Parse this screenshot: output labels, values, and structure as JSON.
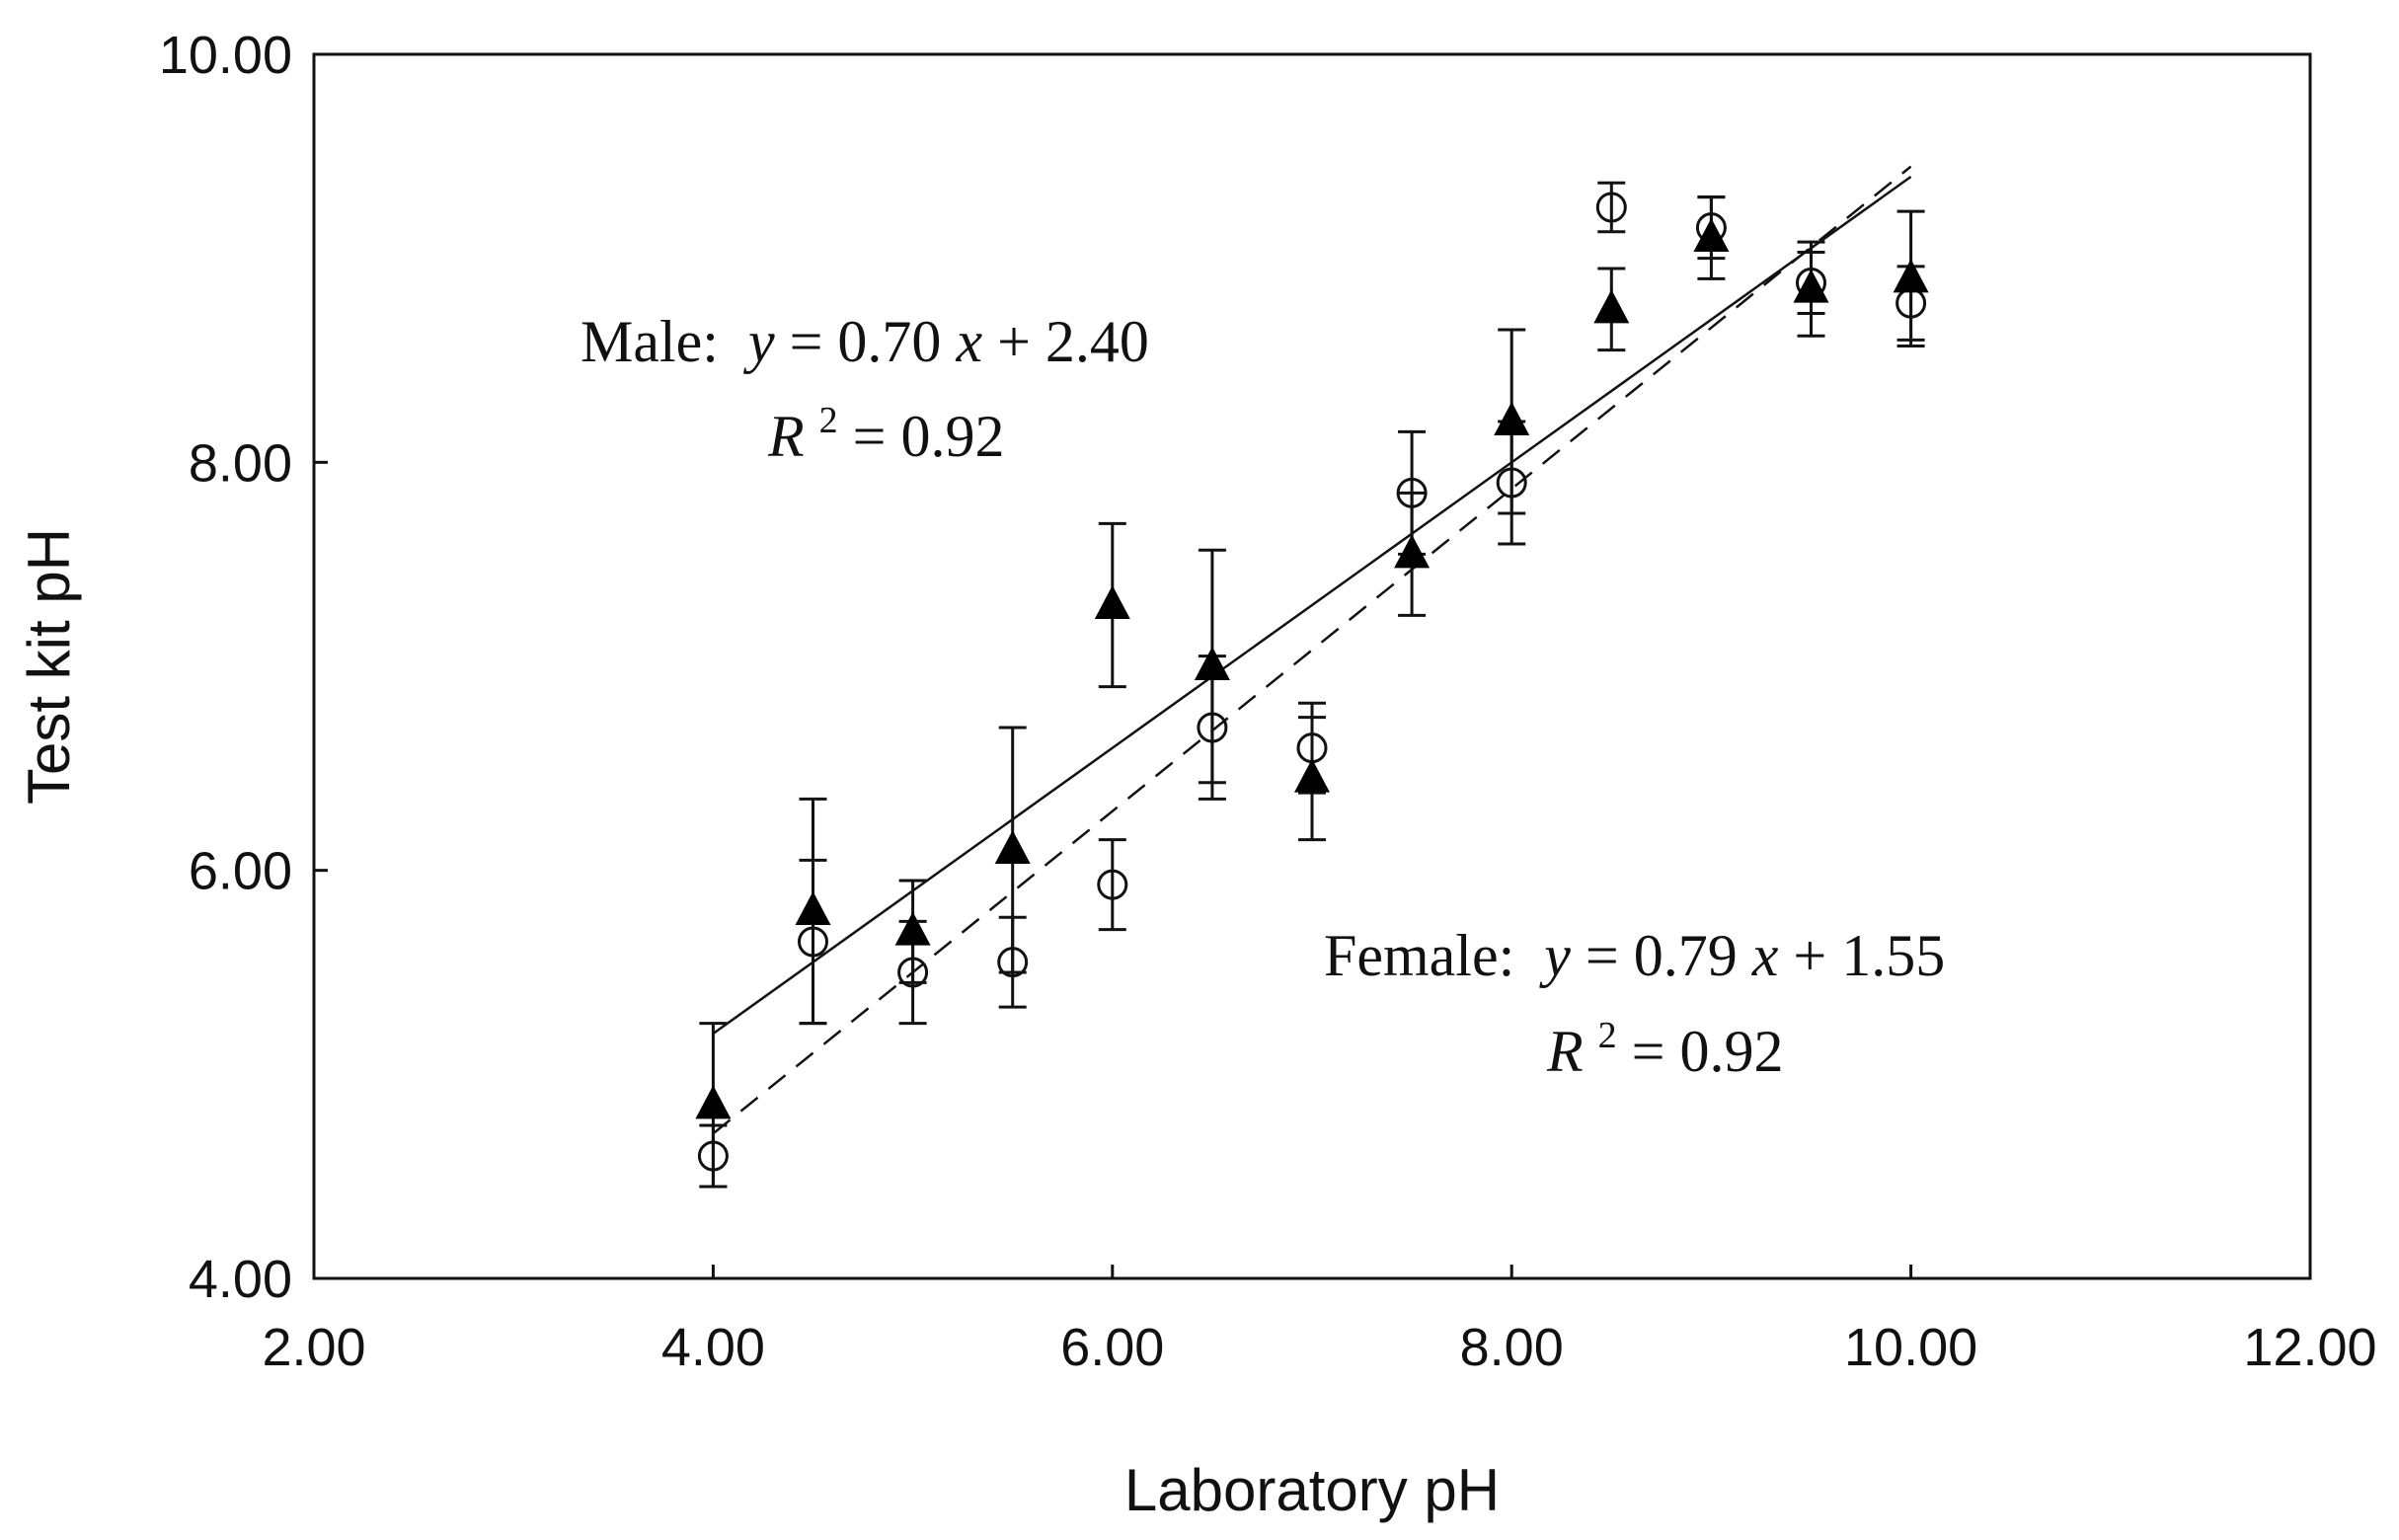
{
  "chart_data": {
    "type": "scatter",
    "title": "",
    "xlabel": "Laboratory pH",
    "ylabel": "Test kit pH",
    "xlim": [
      2.0,
      12.0
    ],
    "ylim": [
      4.0,
      10.0
    ],
    "xticks": [
      "2.00",
      "4.00",
      "6.00",
      "8.00",
      "10.00",
      "12.00"
    ],
    "yticks": [
      "4.00",
      "6.00",
      "8.00",
      "10.00"
    ],
    "grid": false,
    "series": [
      {
        "name": "Male",
        "marker": "filled-triangle",
        "line": "solid",
        "x": [
          4.0,
          4.5,
          5.0,
          5.5,
          6.0,
          6.5,
          7.0,
          7.5,
          8.0,
          8.5,
          9.0,
          9.5,
          10.0
        ],
        "y": [
          4.85,
          5.8,
          5.7,
          6.1,
          7.3,
          7.0,
          6.45,
          7.55,
          8.2,
          8.75,
          9.1,
          8.85,
          8.9
        ],
        "err": [
          0.4,
          0.55,
          0.25,
          0.6,
          0.4,
          0.57,
          0.3,
          0.3,
          0.45,
          0.2,
          0.2,
          0.23,
          0.33
        ],
        "fit": {
          "slope": 0.7,
          "intercept": 2.4
        }
      },
      {
        "name": "Female",
        "marker": "open-circle",
        "line": "dashed",
        "x": [
          4.0,
          4.5,
          5.0,
          5.5,
          6.0,
          6.5,
          7.0,
          7.5,
          8.0,
          8.5,
          9.0,
          9.5,
          10.0
        ],
        "y": [
          4.6,
          5.65,
          5.5,
          5.55,
          5.93,
          6.7,
          6.6,
          7.85,
          7.9,
          9.25,
          9.15,
          8.88,
          8.78
        ],
        "err": [
          0.15,
          0.4,
          0.25,
          0.22,
          0.22,
          0.35,
          0.22,
          0.3,
          0.3,
          0.12,
          0.15,
          0.15,
          0.18
        ],
        "fit": {
          "slope": 0.79,
          "intercept": 1.55
        }
      }
    ],
    "annotations": [
      {
        "id": "male",
        "name_text": "Male:",
        "y_sym": "y",
        "eq_mid": " = 0.70",
        "x_sym": "x",
        "eq_end": " + 2.40",
        "r_sym": "R",
        "r_sup": "2",
        "r_val": " = 0.92"
      },
      {
        "id": "female",
        "name_text": "Female:",
        "y_sym": "y",
        "eq_mid": " = 0.79",
        "x_sym": "x",
        "eq_end": " + 1.55",
        "r_sym": "R",
        "r_sup": "2",
        "r_val": " = 0.92"
      }
    ]
  }
}
